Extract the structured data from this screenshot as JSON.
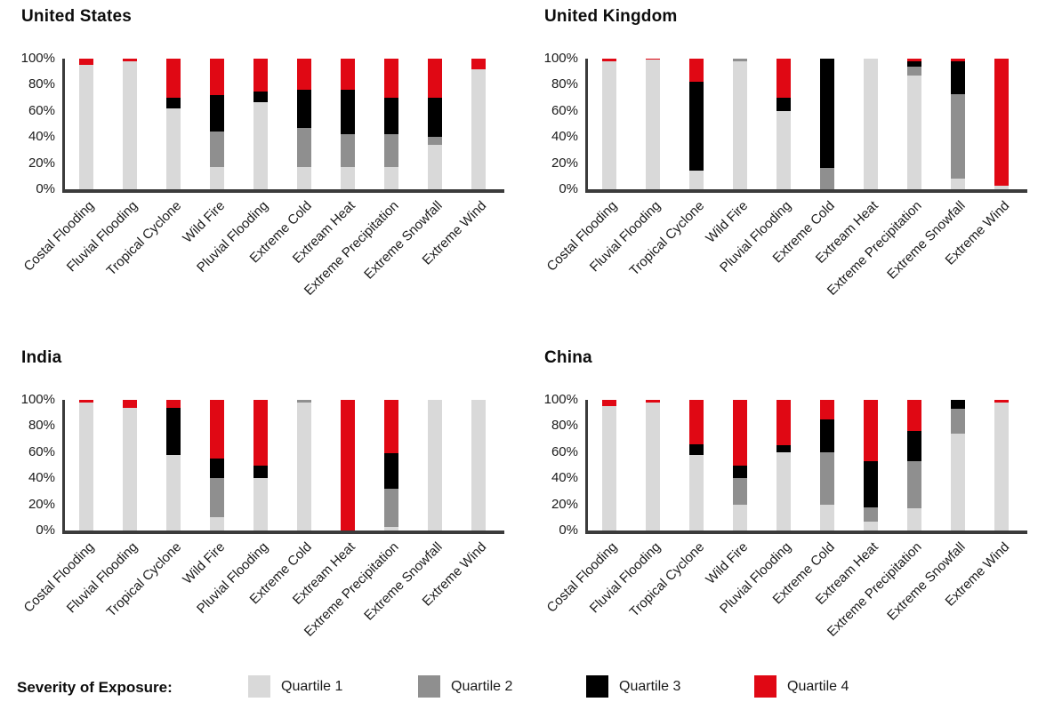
{
  "legend": {
    "title": "Severity of Exposure:",
    "items": [
      {
        "label": "Quartile 1",
        "color": "#d9d9d9"
      },
      {
        "label": "Quartile 2",
        "color": "#8f8f8f"
      },
      {
        "label": "Quartile 3",
        "color": "#000000"
      },
      {
        "label": "Quartile 4",
        "color": "#e00814"
      }
    ]
  },
  "chart_data": [
    {
      "type": "bar",
      "stacked": true,
      "title": "United States",
      "xlabel": "",
      "ylabel": "",
      "ylim": [
        0,
        100
      ],
      "y_ticks": [
        "100%",
        "80%",
        "60%",
        "40%",
        "20%",
        "0%"
      ],
      "categories": [
        "Costal Flooding",
        "Fluvial Flooding",
        "Tropical Cyclone",
        "Wild Fire",
        "Pluvial Flooding",
        "Extreme Cold",
        "Extream Heat",
        "Extreme Precipitation",
        "Extreme Snowfall",
        "Extreme Wind"
      ],
      "series": [
        {
          "name": "Quartile 1",
          "color": "#d9d9d9",
          "values": [
            95,
            98,
            62,
            17,
            67,
            17,
            17,
            17,
            34,
            92
          ]
        },
        {
          "name": "Quartile 2",
          "color": "#8f8f8f",
          "values": [
            0,
            0,
            0,
            27,
            0,
            30,
            25,
            25,
            6,
            0
          ]
        },
        {
          "name": "Quartile 3",
          "color": "#000000",
          "values": [
            0,
            0,
            8,
            28,
            8,
            29,
            34,
            28,
            30,
            0
          ]
        },
        {
          "name": "Quartile 4",
          "color": "#e00814",
          "values": [
            5,
            2,
            30,
            28,
            25,
            24,
            24,
            30,
            30,
            8
          ]
        }
      ]
    },
    {
      "type": "bar",
      "stacked": true,
      "title": "United Kingdom",
      "xlabel": "",
      "ylabel": "",
      "ylim": [
        0,
        100
      ],
      "y_ticks": [
        "100%",
        "80%",
        "60%",
        "40%",
        "20%",
        "0%"
      ],
      "categories": [
        "Costal Flooding",
        "Fluvial Flooding",
        "Tropical Cyclone",
        "Wild Fire",
        "Pluvial Flooding",
        "Extreme Cold",
        "Extream Heat",
        "Extreme Precipitation",
        "Extreme Snowfall",
        "Extreme Wind"
      ],
      "series": [
        {
          "name": "Quartile 1",
          "color": "#d9d9d9",
          "values": [
            98,
            99,
            14,
            98,
            60,
            0,
            100,
            87,
            8,
            3
          ]
        },
        {
          "name": "Quartile 2",
          "color": "#8f8f8f",
          "values": [
            0,
            0,
            0,
            2,
            0,
            16,
            0,
            7,
            65,
            0
          ]
        },
        {
          "name": "Quartile 3",
          "color": "#000000",
          "values": [
            0,
            0,
            68,
            0,
            10,
            84,
            0,
            4,
            25,
            0
          ]
        },
        {
          "name": "Quartile 4",
          "color": "#e00814",
          "values": [
            2,
            1,
            18,
            0,
            30,
            0,
            0,
            2,
            2,
            97
          ]
        }
      ]
    },
    {
      "type": "bar",
      "stacked": true,
      "title": "India",
      "xlabel": "",
      "ylabel": "",
      "ylim": [
        0,
        100
      ],
      "y_ticks": [
        "100%",
        "80%",
        "60%",
        "40%",
        "20%",
        "0%"
      ],
      "categories": [
        "Costal Flooding",
        "Fluvial Flooding",
        "Tropical Cyclone",
        "Wild Fire",
        "Pluvial Flooding",
        "Extreme Cold",
        "Extream Heat",
        "Extreme Precipitation",
        "Extreme Snowfall",
        "Extreme Wind"
      ],
      "series": [
        {
          "name": "Quartile 1",
          "color": "#d9d9d9",
          "values": [
            98,
            94,
            58,
            10,
            40,
            98,
            0,
            3,
            100,
            100
          ]
        },
        {
          "name": "Quartile 2",
          "color": "#8f8f8f",
          "values": [
            0,
            0,
            0,
            30,
            0,
            2,
            0,
            29,
            0,
            0
          ]
        },
        {
          "name": "Quartile 3",
          "color": "#000000",
          "values": [
            0,
            0,
            36,
            15,
            10,
            0,
            0,
            27,
            0,
            0
          ]
        },
        {
          "name": "Quartile 4",
          "color": "#e00814",
          "values": [
            2,
            6,
            6,
            45,
            50,
            0,
            100,
            41,
            0,
            0
          ]
        }
      ]
    },
    {
      "type": "bar",
      "stacked": true,
      "title": "China",
      "xlabel": "",
      "ylabel": "",
      "ylim": [
        0,
        100
      ],
      "y_ticks": [
        "100%",
        "80%",
        "60%",
        "40%",
        "20%",
        "0%"
      ],
      "categories": [
        "Costal Flooding",
        "Fluvial Flooding",
        "Tropical Cyclone",
        "Wild Fire",
        "Pluvial Flooding",
        "Extreme Cold",
        "Extream Heat",
        "Extreme Precipitation",
        "Extreme Snowfall",
        "Extreme Wind"
      ],
      "series": [
        {
          "name": "Quartile 1",
          "color": "#d9d9d9",
          "values": [
            95,
            98,
            58,
            20,
            60,
            20,
            7,
            17,
            74,
            98
          ]
        },
        {
          "name": "Quartile 2",
          "color": "#8f8f8f",
          "values": [
            0,
            0,
            0,
            20,
            0,
            40,
            11,
            36,
            19,
            0
          ]
        },
        {
          "name": "Quartile 3",
          "color": "#000000",
          "values": [
            0,
            0,
            8,
            10,
            5,
            25,
            35,
            23,
            7,
            0
          ]
        },
        {
          "name": "Quartile 4",
          "color": "#e00814",
          "values": [
            5,
            2,
            34,
            50,
            35,
            15,
            47,
            24,
            0,
            2
          ]
        }
      ]
    }
  ]
}
